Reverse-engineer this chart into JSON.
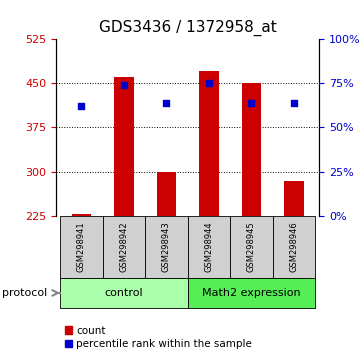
{
  "title": "GDS3436 / 1372958_at",
  "samples": [
    "GSM298941",
    "GSM298942",
    "GSM298943",
    "GSM298944",
    "GSM298945",
    "GSM298946"
  ],
  "bar_values": [
    228,
    460,
    300,
    470,
    450,
    285
  ],
  "bar_base": 225,
  "percentile_values": [
    62,
    74,
    64,
    75,
    64,
    64
  ],
  "left_ylim": [
    225,
    525
  ],
  "left_yticks": [
    225,
    300,
    375,
    450,
    525
  ],
  "right_ylim": [
    0,
    100
  ],
  "right_yticks": [
    0,
    25,
    50,
    75,
    100
  ],
  "bar_color": "#cc0000",
  "percentile_color": "#0000cc",
  "bar_width": 0.45,
  "group1_label": "control",
  "group2_label": "Math2 expression",
  "group1_indices": [
    0,
    1,
    2
  ],
  "group2_indices": [
    3,
    4,
    5
  ],
  "group1_bg": "#aaffaa",
  "group2_bg": "#55ee55",
  "protocol_label": "protocol",
  "legend_count": "count",
  "legend_percentile": "percentile rank within the sample",
  "sample_box_bg": "#d0d0d0",
  "title_fontsize": 11,
  "tick_fontsize": 8,
  "sample_fontsize": 6,
  "group_fontsize": 8,
  "legend_fontsize": 7.5
}
